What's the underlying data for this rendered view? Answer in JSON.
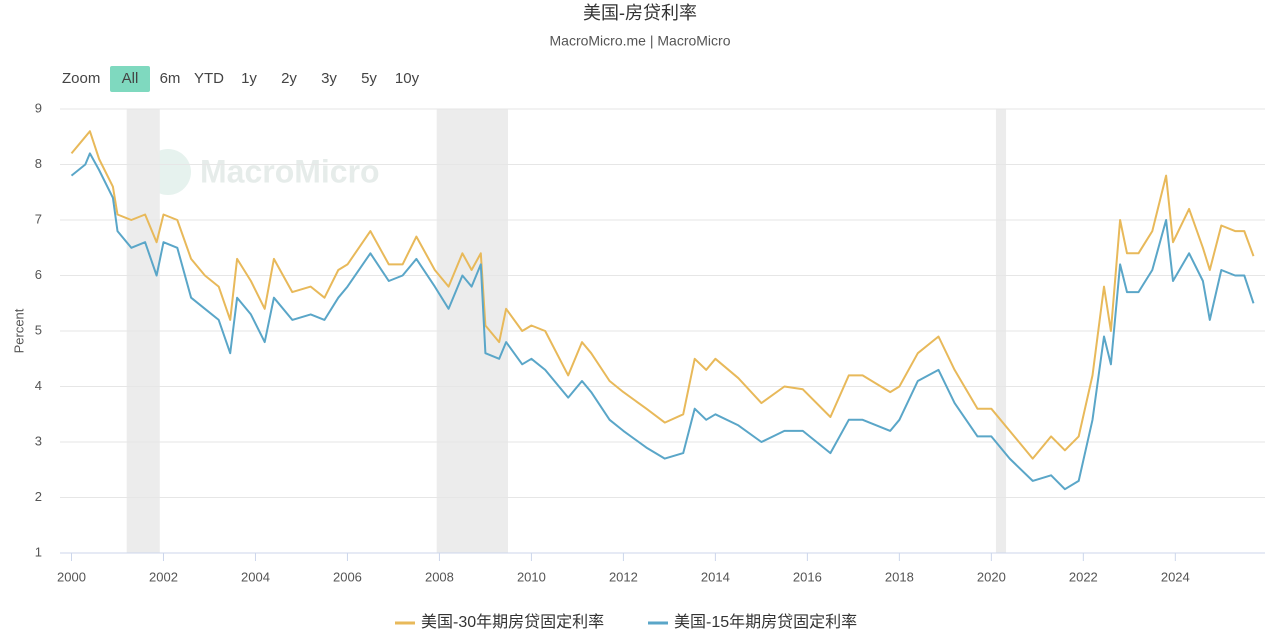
{
  "chart_data": {
    "type": "line",
    "title": "美国-房贷利率",
    "subtitle": "MacroMicro.me | MacroMicro",
    "watermark": "MacroMicro",
    "range_selector": {
      "label": "Zoom",
      "buttons": [
        "All",
        "6m",
        "YTD",
        "1y",
        "2y",
        "3y",
        "5y",
        "10y"
      ],
      "selected_index": 0
    },
    "y_label": "Percent",
    "x": [
      2000.0,
      2000.3,
      2000.4,
      2000.6,
      2000.9,
      2001.0,
      2001.3,
      2001.6,
      2001.85,
      2002.0,
      2002.3,
      2002.6,
      2002.9,
      2003.2,
      2003.45,
      2003.6,
      2003.9,
      2004.2,
      2004.4,
      2004.8,
      2005.2,
      2005.5,
      2005.8,
      2006.0,
      2006.5,
      2006.9,
      2007.2,
      2007.5,
      2007.9,
      2008.2,
      2008.5,
      2008.7,
      2008.9,
      2009.0,
      2009.3,
      2009.45,
      2009.8,
      2010.0,
      2010.3,
      2010.8,
      2011.1,
      2011.3,
      2011.7,
      2012.0,
      2012.5,
      2012.9,
      2013.3,
      2013.55,
      2013.8,
      2014.0,
      2014.5,
      2015.0,
      2015.5,
      2015.9,
      2016.5,
      2016.9,
      2017.2,
      2017.8,
      2018.0,
      2018.4,
      2018.85,
      2019.2,
      2019.7,
      2020.0,
      2020.4,
      2020.9,
      2021.3,
      2021.6,
      2021.9,
      2022.2,
      2022.45,
      2022.6,
      2022.8,
      2022.95,
      2023.2,
      2023.5,
      2023.8,
      2023.95,
      2024.3,
      2024.6,
      2024.75,
      2025.0,
      2025.3,
      2025.5,
      2025.7
    ],
    "series": [
      {
        "name": "美国-30年期房贷固定利率",
        "color": "#e8b95a",
        "values": [
          8.2,
          8.5,
          8.6,
          8.1,
          7.6,
          7.1,
          7.0,
          7.1,
          6.6,
          7.1,
          7.0,
          6.3,
          6.0,
          5.8,
          5.2,
          6.3,
          5.9,
          5.4,
          6.3,
          5.7,
          5.8,
          5.6,
          6.1,
          6.2,
          6.8,
          6.2,
          6.2,
          6.7,
          6.1,
          5.8,
          6.4,
          6.1,
          6.4,
          5.1,
          4.8,
          5.4,
          5.0,
          5.1,
          5.0,
          4.2,
          4.8,
          4.6,
          4.1,
          3.9,
          3.6,
          3.35,
          3.5,
          4.5,
          4.3,
          4.5,
          4.15,
          3.7,
          4.0,
          3.95,
          3.45,
          4.2,
          4.2,
          3.9,
          4.0,
          4.6,
          4.9,
          4.3,
          3.6,
          3.6,
          3.2,
          2.7,
          3.1,
          2.85,
          3.1,
          4.2,
          5.8,
          5.0,
          7.0,
          6.4,
          6.4,
          6.8,
          7.8,
          6.6,
          7.2,
          6.5,
          6.1,
          6.9,
          6.8,
          6.8,
          6.35
        ]
      },
      {
        "name": "美国-15年期房贷固定利率",
        "color": "#5aa6c8",
        "values": [
          7.8,
          8.0,
          8.2,
          7.9,
          7.4,
          6.8,
          6.5,
          6.6,
          6.0,
          6.6,
          6.5,
          5.6,
          5.4,
          5.2,
          4.6,
          5.6,
          5.3,
          4.8,
          5.6,
          5.2,
          5.3,
          5.2,
          5.6,
          5.8,
          6.4,
          5.9,
          6.0,
          6.3,
          5.8,
          5.4,
          6.0,
          5.8,
          6.2,
          4.6,
          4.5,
          4.8,
          4.4,
          4.5,
          4.3,
          3.8,
          4.1,
          3.9,
          3.4,
          3.2,
          2.9,
          2.7,
          2.8,
          3.6,
          3.4,
          3.5,
          3.3,
          3.0,
          3.2,
          3.2,
          2.8,
          3.4,
          3.4,
          3.2,
          3.4,
          4.1,
          4.3,
          3.7,
          3.1,
          3.1,
          2.7,
          2.3,
          2.4,
          2.15,
          2.3,
          3.4,
          4.9,
          4.4,
          6.2,
          5.7,
          5.7,
          6.1,
          7.0,
          5.9,
          6.4,
          5.9,
          5.2,
          6.1,
          6.0,
          6.0,
          5.5
        ]
      }
    ],
    "recessions": [
      [
        2001.2,
        2001.92
      ],
      [
        2007.94,
        2009.49
      ],
      [
        2020.1,
        2020.32
      ]
    ],
    "recession_color": "#ececec",
    "xlim": [
      1999.75,
      2025.95
    ],
    "xticks": [
      2000,
      2002,
      2004,
      2006,
      2008,
      2010,
      2012,
      2014,
      2016,
      2018,
      2020,
      2022,
      2024
    ],
    "ylim": [
      1,
      9
    ],
    "yticks": [
      1,
      2,
      3,
      4,
      5,
      6,
      7,
      8,
      9
    ],
    "grid": true,
    "legend": "bottom"
  }
}
